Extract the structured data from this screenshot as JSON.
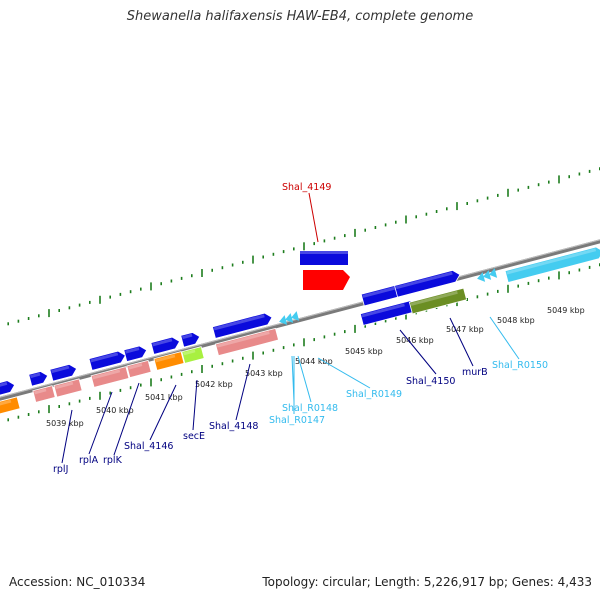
{
  "title": "Shewanella halifaxensis HAW-EB4, complete genome",
  "footer": {
    "accession": "Accession: NC_010334",
    "topology": "Topology: circular; Length: 5,226,917 bp; Genes: 4,433"
  },
  "colors": {
    "backbone": "#808080",
    "tick": "#1e7d1e",
    "cds_blue": "#0a0adc",
    "cds_pink": "#e88a8a",
    "cds_orange": "#ff8c00",
    "cds_green": "#a8f040",
    "cds_olive": "#6b8e23",
    "cds_red": "#ff0000",
    "rna_cyan": "#44ccf0",
    "label_blue": "#000080",
    "label_cyan": "#33bbee",
    "label_red": "#cc0000"
  },
  "kbp_labels": [
    "5039 kbp",
    "5040 kbp",
    "5041 kbp",
    "5042 kbp",
    "5043 kbp",
    "5044 kbp",
    "5045 kbp",
    "5046 kbp",
    "5047 kbp",
    "5048 kbp",
    "5049 kbp"
  ],
  "gene_labels": {
    "shal_4149": "Shal_4149",
    "rplJ": "rplJ",
    "rplA": "rplA",
    "rplK": "rplK",
    "shal_4146": "Shal_4146",
    "secE": "secE",
    "shal_4148": "Shal_4148",
    "shal_r0148": "Shal_R0148",
    "shal_r0147": "Shal_R0147",
    "shal_r0149": "Shal_R0149",
    "shal_4150": "Shal_4150",
    "murB": "murB",
    "shal_r0150": "Shal_R0150"
  }
}
